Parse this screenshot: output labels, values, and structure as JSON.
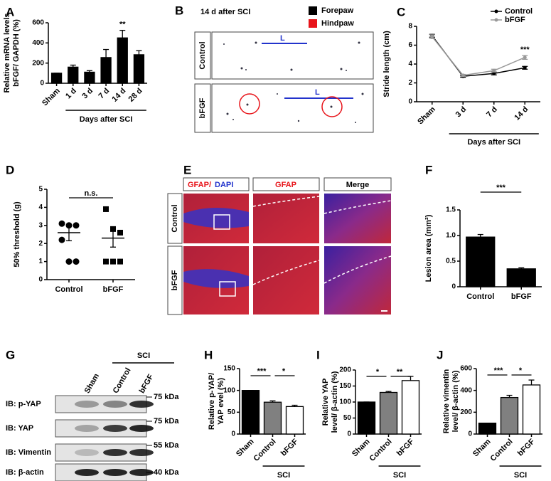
{
  "chart_data": [
    {
      "label": "A",
      "type": "bar",
      "ylabel": [
        "Relative mRNA levels",
        "bFGF/ GAPDH (%)"
      ],
      "xlabel": "Days after SCI",
      "categories": [
        "Sham",
        "1 d",
        "3 d",
        "7 d",
        "14 d",
        "28 d"
      ],
      "values": [
        100,
        160,
        110,
        255,
        450,
        283
      ],
      "errors": [
        0,
        20,
        15,
        80,
        75,
        40
      ],
      "colors": [
        "#000000",
        "#000000",
        "#000000",
        "#000000",
        "#000000",
        "#000000"
      ],
      "ylim": [
        0,
        600
      ],
      "yticks": [
        0,
        200,
        400,
        600
      ],
      "annotations": [
        "**"
      ]
    },
    {
      "label": "C",
      "type": "line",
      "ylabel": "Stride length (cm)",
      "xlabel": "Days after SCI",
      "categories": [
        "Sham",
        "3 d",
        "7 d",
        "14 d"
      ],
      "series": [
        {
          "name": "Control",
          "color": "#000000",
          "values": [
            7.0,
            2.7,
            3.0,
            3.6
          ],
          "errors": [
            0.15,
            0.1,
            0.15,
            0.15
          ]
        },
        {
          "name": "bFGF",
          "color": "#999999",
          "values": [
            6.9,
            2.8,
            3.3,
            4.7
          ],
          "errors": [
            0.2,
            0.1,
            0.15,
            0.2
          ]
        }
      ],
      "ylim": [
        0,
        8
      ],
      "yticks": [
        0,
        2,
        4,
        6,
        8
      ],
      "annotations": [
        "***"
      ]
    },
    {
      "label": "D",
      "type": "dot",
      "ylabel": "50% threshold (g)",
      "categories": [
        "Control",
        "bFGF"
      ],
      "points": [
        [
          3.1,
          3.0,
          3.0,
          2.2,
          1.0,
          1.0
        ],
        [
          3.9,
          2.8,
          2.6,
          1.0,
          1.0,
          1.0
        ]
      ],
      "markers": [
        "circle",
        "square"
      ],
      "values": [
        2.6,
        2.3
      ],
      "errors": [
        0.45,
        0.5
      ],
      "ylim": [
        0,
        5
      ],
      "yticks": [
        0,
        1,
        2,
        3,
        4,
        5
      ],
      "annotations": [
        "n.s."
      ]
    },
    {
      "label": "F",
      "type": "bar",
      "ylabel": "Lesion area (mm²)",
      "categories": [
        "Control",
        "bFGF"
      ],
      "values": [
        0.97,
        0.35
      ],
      "errors": [
        0.05,
        0.02
      ],
      "colors": [
        "#000000",
        "#000000"
      ],
      "ylim": [
        0,
        1.5
      ],
      "yticks": [
        0,
        0.5,
        {
          "value": 1,
          "label": "1.0"
        },
        1.5
      ],
      "annotations": [
        "***"
      ]
    },
    {
      "label": "H",
      "type": "bar",
      "ylabel": [
        "Relative p-YAP/",
        "YAP evel (%)"
      ],
      "group_label": "SCI",
      "categories": [
        "Sham",
        "Control",
        "bFGF"
      ],
      "values": [
        100,
        73,
        63
      ],
      "errors": [
        0,
        3,
        3
      ],
      "colors": [
        "#000000",
        "#808080",
        "#ffffff"
      ],
      "ylim": [
        0,
        150
      ],
      "yticks": [
        0,
        50,
        100,
        150
      ],
      "annotations": [
        "***",
        "*"
      ]
    },
    {
      "label": "I",
      "type": "bar",
      "ylabel": [
        "Relative YAP",
        "level/ β-actin (%)"
      ],
      "group_label": "SCI",
      "categories": [
        "Sham",
        "Control",
        "bFGF"
      ],
      "values": [
        100,
        130,
        167
      ],
      "errors": [
        0,
        3,
        13
      ],
      "colors": [
        "#000000",
        "#808080",
        "#ffffff"
      ],
      "ylim": [
        0,
        200
      ],
      "yticks": [
        0,
        50,
        100,
        150,
        200
      ],
      "annotations": [
        "*",
        "**"
      ]
    },
    {
      "label": "J",
      "type": "bar",
      "ylabel": [
        "Relative vimentin",
        "level/ β-actin (%)"
      ],
      "group_label": "SCI",
      "categories": [
        "Sham",
        "Control",
        "bFGF"
      ],
      "values": [
        100,
        335,
        450
      ],
      "errors": [
        0,
        20,
        45
      ],
      "colors": [
        "#000000",
        "#808080",
        "#ffffff"
      ],
      "ylim": [
        0,
        600
      ],
      "yticks": [
        0,
        200,
        400,
        600
      ],
      "annotations": [
        "***",
        "*"
      ]
    }
  ],
  "panel_b": {
    "label": "B",
    "title": "14 d after SCI",
    "legend": [
      {
        "name": "Forepaw",
        "color": "#000000"
      },
      {
        "name": "Hindpaw",
        "color": "#e8141a"
      }
    ],
    "rows": [
      "Control",
      "bFGF"
    ],
    "markers": [
      "L",
      "L"
    ]
  },
  "panel_e": {
    "label": "E",
    "headers": [
      [
        "GFAP/",
        "DAPI"
      ],
      "GFAP",
      "Merge"
    ],
    "rows": [
      "Control",
      "bFGF"
    ]
  },
  "panel_g": {
    "label": "G",
    "group_label": "SCI",
    "lanes": [
      "Sham",
      "Control",
      "bFGF"
    ],
    "rows": [
      {
        "name": "IB: p-YAP",
        "size": "75 kDa"
      },
      {
        "name": "IB: YAP",
        "size": "75 kDa"
      },
      {
        "name": "IB: Vimentin",
        "size": "55 kDa"
      },
      {
        "name": "IB: β-actin",
        "size": "40 kDa"
      }
    ]
  }
}
